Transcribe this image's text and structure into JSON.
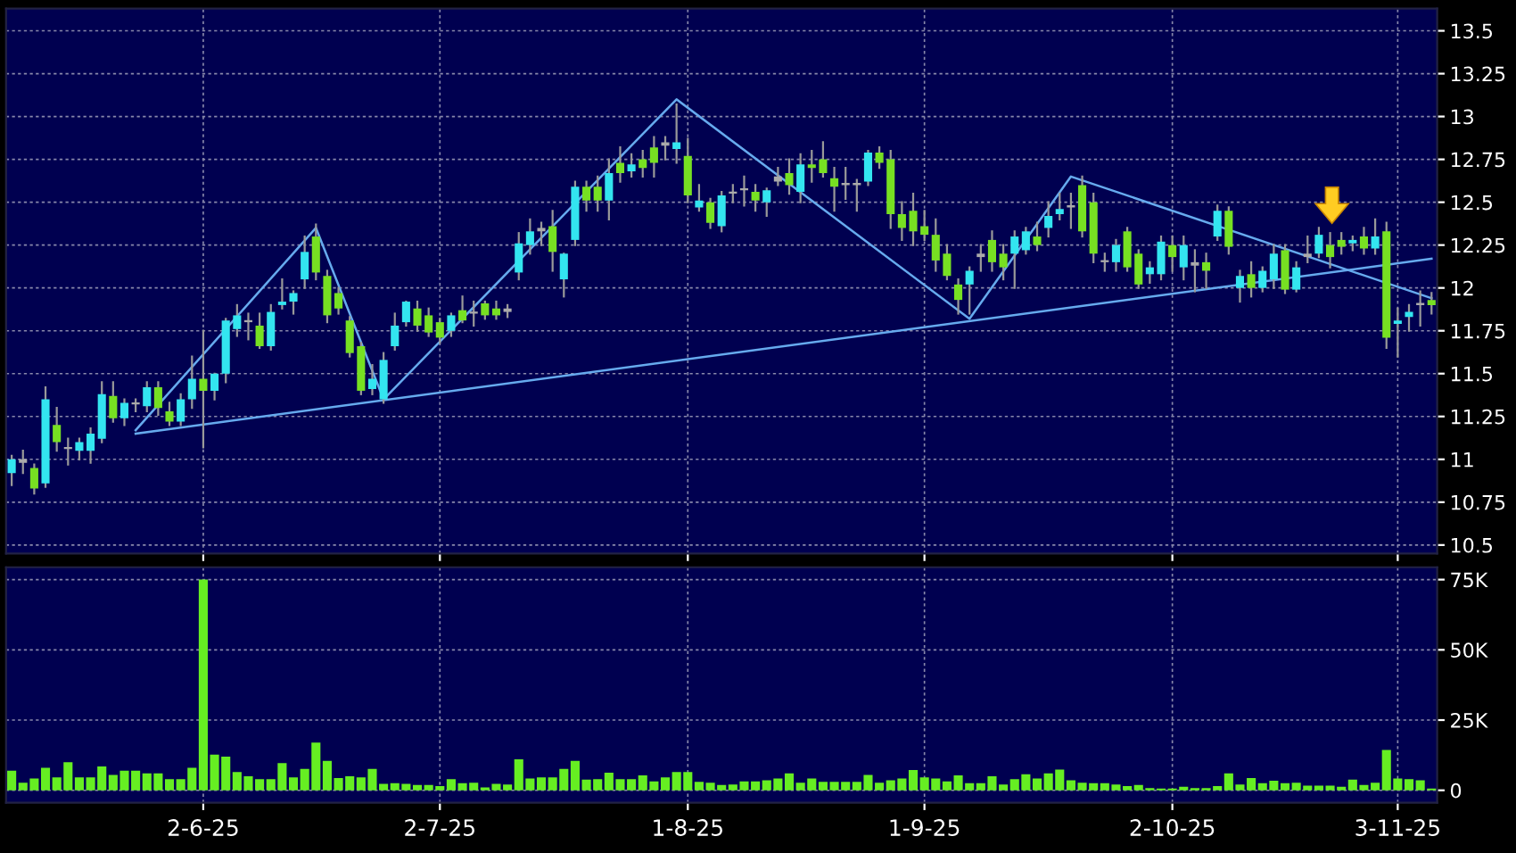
{
  "chart_data": [
    {
      "type": "candlestick",
      "tick_labels": "y",
      "grid": true,
      "categories": [
        null,
        null,
        null,
        null,
        null,
        null,
        null,
        null,
        null,
        null,
        null,
        null,
        null,
        null,
        null,
        null,
        null,
        null,
        null,
        null,
        null,
        null,
        null,
        null,
        null,
        null,
        null,
        null,
        null,
        null,
        null,
        null,
        null,
        null,
        null,
        null,
        null,
        null,
        null,
        null,
        null,
        null,
        null,
        null,
        null,
        null,
        null,
        null,
        null,
        null,
        null,
        null,
        null,
        null,
        null,
        null,
        null,
        null,
        null,
        null,
        null,
        null,
        null,
        null,
        null,
        null,
        null,
        null,
        null,
        null,
        null,
        null,
        null,
        null,
        null,
        null,
        null,
        null,
        null,
        null,
        null,
        null,
        null,
        null,
        null,
        null,
        null,
        null,
        null,
        null,
        null,
        null,
        null,
        null,
        null,
        null,
        null,
        null,
        null,
        null,
        null,
        null,
        null,
        null,
        null,
        null,
        null,
        null,
        null,
        null,
        null,
        null,
        null,
        null,
        null,
        null,
        null,
        null,
        null,
        null,
        null,
        null,
        null,
        null,
        null,
        null,
        null
      ],
      "ylim": [
        10.45,
        13.63
      ],
      "yticks": [
        10.5,
        10.75,
        11,
        11.25,
        11.5,
        11.75,
        12,
        12.25,
        12.5,
        12.75,
        13,
        13.25,
        13.5
      ],
      "ohlc": [
        [
          10.92,
          11.02,
          10.85,
          11.0
        ],
        [
          11.0,
          11.05,
          10.92,
          10.98
        ],
        [
          10.95,
          10.97,
          10.8,
          10.83
        ],
        [
          10.86,
          11.42,
          10.84,
          11.35
        ],
        [
          11.2,
          11.3,
          11.05,
          11.1
        ],
        [
          11.07,
          11.12,
          10.97,
          11.06
        ],
        [
          11.05,
          11.12,
          11.0,
          11.1
        ],
        [
          11.05,
          11.18,
          10.98,
          11.15
        ],
        [
          11.12,
          11.45,
          11.1,
          11.38
        ],
        [
          11.37,
          11.45,
          11.22,
          11.24
        ],
        [
          11.24,
          11.35,
          11.2,
          11.33
        ],
        [
          11.32,
          11.35,
          11.28,
          11.32
        ],
        [
          11.31,
          11.45,
          11.28,
          11.42
        ],
        [
          11.42,
          11.45,
          11.26,
          11.3
        ],
        [
          11.28,
          11.33,
          11.2,
          11.22
        ],
        [
          11.22,
          11.38,
          11.2,
          11.35
        ],
        [
          11.35,
          11.6,
          11.3,
          11.47
        ],
        [
          11.47,
          11.75,
          11.07,
          11.4
        ],
        [
          11.4,
          11.5,
          11.35,
          11.5
        ],
        [
          11.5,
          11.82,
          11.45,
          11.81
        ],
        [
          11.76,
          11.9,
          11.72,
          11.84
        ],
        [
          11.8,
          11.85,
          11.7,
          11.8
        ],
        [
          11.78,
          11.85,
          11.65,
          11.66
        ],
        [
          11.66,
          11.9,
          11.64,
          11.86
        ],
        [
          11.9,
          12.05,
          11.88,
          11.92
        ],
        [
          11.92,
          11.98,
          11.85,
          11.97
        ],
        [
          12.05,
          12.3,
          12.0,
          12.21
        ],
        [
          12.3,
          12.37,
          12.05,
          12.09
        ],
        [
          12.07,
          12.1,
          11.8,
          11.84
        ],
        [
          11.97,
          12.0,
          11.85,
          11.88
        ],
        [
          11.81,
          11.83,
          11.6,
          11.62
        ],
        [
          11.66,
          11.68,
          11.38,
          11.4
        ],
        [
          11.41,
          11.55,
          11.38,
          11.47
        ],
        [
          11.35,
          11.62,
          11.33,
          11.58
        ],
        [
          11.66,
          11.85,
          11.64,
          11.78
        ],
        [
          11.8,
          11.92,
          11.78,
          11.92
        ],
        [
          11.88,
          11.92,
          11.75,
          11.78
        ],
        [
          11.84,
          11.88,
          11.72,
          11.74
        ],
        [
          11.8,
          11.82,
          11.68,
          11.71
        ],
        [
          11.75,
          11.85,
          11.72,
          11.84
        ],
        [
          11.87,
          11.95,
          11.8,
          11.81
        ],
        [
          11.85,
          11.92,
          11.78,
          11.86
        ],
        [
          11.91,
          11.92,
          11.82,
          11.84
        ],
        [
          11.88,
          11.92,
          11.82,
          11.84
        ],
        [
          11.86,
          11.9,
          11.83,
          11.88
        ],
        [
          12.09,
          12.32,
          12.05,
          12.26
        ],
        [
          12.25,
          12.4,
          12.2,
          12.33
        ],
        [
          12.33,
          12.38,
          12.25,
          12.35
        ],
        [
          12.36,
          12.45,
          12.1,
          12.21
        ],
        [
          12.05,
          12.2,
          11.95,
          12.2
        ],
        [
          12.28,
          12.62,
          12.25,
          12.59
        ],
        [
          12.59,
          12.62,
          12.45,
          12.51
        ],
        [
          12.59,
          12.65,
          12.45,
          12.51
        ],
        [
          12.51,
          12.75,
          12.4,
          12.67
        ],
        [
          12.73,
          12.82,
          12.62,
          12.67
        ],
        [
          12.68,
          12.78,
          12.65,
          12.72
        ],
        [
          12.75,
          12.8,
          12.65,
          12.7
        ],
        [
          12.82,
          12.88,
          12.65,
          12.73
        ],
        [
          12.83,
          12.88,
          12.75,
          12.85
        ],
        [
          12.81,
          13.07,
          12.73,
          12.85
        ],
        [
          12.77,
          12.87,
          12.5,
          12.54
        ],
        [
          12.47,
          12.6,
          12.45,
          12.51
        ],
        [
          12.5,
          12.52,
          12.35,
          12.38
        ],
        [
          12.36,
          12.56,
          12.33,
          12.54
        ],
        [
          12.55,
          12.6,
          12.5,
          12.56
        ],
        [
          12.57,
          12.65,
          12.48,
          12.58
        ],
        [
          12.56,
          12.6,
          12.45,
          12.51
        ],
        [
          12.5,
          12.58,
          12.42,
          12.57
        ],
        [
          12.62,
          12.7,
          12.6,
          12.65
        ],
        [
          12.67,
          12.75,
          12.55,
          12.6
        ],
        [
          12.56,
          12.78,
          12.5,
          12.72
        ],
        [
          12.72,
          12.8,
          12.62,
          12.7
        ],
        [
          12.75,
          12.85,
          12.65,
          12.67
        ],
        [
          12.64,
          12.7,
          12.45,
          12.59
        ],
        [
          12.6,
          12.7,
          12.52,
          12.6
        ],
        [
          12.6,
          12.63,
          12.45,
          12.6
        ],
        [
          12.62,
          12.8,
          12.6,
          12.79
        ],
        [
          12.79,
          12.82,
          12.7,
          12.73
        ],
        [
          12.75,
          12.8,
          12.35,
          12.43
        ],
        [
          12.43,
          12.5,
          12.28,
          12.35
        ],
        [
          12.45,
          12.55,
          12.25,
          12.33
        ],
        [
          12.36,
          12.45,
          12.28,
          12.31
        ],
        [
          12.31,
          12.4,
          12.1,
          12.16
        ],
        [
          12.2,
          12.25,
          12.05,
          12.07
        ],
        [
          12.02,
          12.05,
          11.85,
          11.93
        ],
        [
          12.02,
          12.12,
          11.85,
          12.1
        ],
        [
          12.18,
          12.25,
          12.1,
          12.2
        ],
        [
          12.28,
          12.33,
          12.1,
          12.15
        ],
        [
          12.2,
          12.25,
          12.05,
          12.12
        ],
        [
          12.2,
          12.33,
          12.0,
          12.3
        ],
        [
          12.22,
          12.35,
          12.2,
          12.33
        ],
        [
          12.3,
          12.38,
          12.22,
          12.25
        ],
        [
          12.35,
          12.5,
          12.3,
          12.42
        ],
        [
          12.43,
          12.55,
          12.4,
          12.46
        ],
        [
          12.47,
          12.55,
          12.35,
          12.48
        ],
        [
          12.6,
          12.65,
          12.3,
          12.33
        ],
        [
          12.5,
          12.55,
          12.15,
          12.2
        ],
        [
          12.16,
          12.2,
          12.1,
          12.15
        ],
        [
          12.15,
          12.28,
          12.1,
          12.25
        ],
        [
          12.33,
          12.35,
          12.1,
          12.12
        ],
        [
          12.2,
          12.22,
          12.0,
          12.02
        ],
        [
          12.08,
          12.15,
          12.03,
          12.12
        ],
        [
          12.08,
          12.3,
          12.05,
          12.27
        ],
        [
          12.25,
          12.3,
          12.1,
          12.18
        ],
        [
          12.12,
          12.3,
          12.05,
          12.25
        ],
        [
          12.15,
          12.22,
          11.98,
          12.13
        ],
        [
          12.15,
          12.2,
          12.0,
          12.1
        ],
        [
          12.3,
          12.48,
          12.28,
          12.45
        ],
        [
          12.45,
          12.47,
          12.2,
          12.24
        ],
        [
          12.0,
          12.1,
          11.92,
          12.07
        ],
        [
          12.08,
          12.15,
          11.95,
          12.0
        ],
        [
          12.0,
          12.12,
          11.98,
          12.1
        ],
        [
          12.05,
          12.25,
          12.0,
          12.2
        ],
        [
          12.22,
          12.25,
          11.97,
          11.99
        ],
        [
          11.99,
          12.15,
          11.98,
          12.12
        ],
        [
          12.18,
          12.3,
          12.15,
          12.2
        ],
        [
          12.2,
          12.35,
          12.18,
          12.31
        ],
        [
          12.25,
          12.32,
          12.12,
          12.18
        ],
        [
          12.28,
          12.32,
          12.2,
          12.24
        ],
        [
          12.26,
          12.3,
          12.22,
          12.28
        ],
        [
          12.3,
          12.35,
          12.2,
          12.23
        ],
        [
          12.23,
          12.4,
          12.2,
          12.3
        ],
        [
          12.33,
          12.38,
          11.65,
          11.71
        ],
        [
          11.79,
          11.88,
          11.6,
          11.81
        ],
        [
          11.83,
          11.9,
          11.75,
          11.86
        ],
        [
          11.9,
          11.98,
          11.78,
          11.9
        ],
        [
          11.93,
          11.97,
          11.85,
          11.9
        ]
      ],
      "colors": [
        "#33e5f0",
        "#aaaaaa",
        "#77e022",
        "#33e5f0",
        "#77e022",
        "#aaaaaa",
        "#33e5f0",
        "#33e5f0",
        "#33e5f0",
        "#77e022",
        "#33e5f0",
        "#aaaaaa",
        "#33e5f0",
        "#77e022",
        "#77e022",
        "#33e5f0",
        "#33e5f0",
        "#77e022",
        "#33e5f0",
        "#33e5f0",
        "#33e5f0",
        "#aaaaaa",
        "#77e022",
        "#33e5f0",
        "#33e5f0",
        "#33e5f0",
        "#33e5f0",
        "#77e022",
        "#77e022",
        "#77e022",
        "#77e022",
        "#77e022",
        "#33e5f0",
        "#33e5f0",
        "#33e5f0",
        "#33e5f0",
        "#77e022",
        "#77e022",
        "#77e022",
        "#33e5f0",
        "#77e022",
        "#aaaaaa",
        "#77e022",
        "#77e022",
        "#aaaaaa",
        "#33e5f0",
        "#33e5f0",
        "#aaaaaa",
        "#77e022",
        "#33e5f0",
        "#33e5f0",
        "#77e022",
        "#77e022",
        "#33e5f0",
        "#77e022",
        "#33e5f0",
        "#77e022",
        "#77e022",
        "#aaaaaa",
        "#33e5f0",
        "#77e022",
        "#33e5f0",
        "#77e022",
        "#33e5f0",
        "#aaaaaa",
        "#aaaaaa",
        "#77e022",
        "#33e5f0",
        "#aaaaaa",
        "#77e022",
        "#33e5f0",
        "#77e022",
        "#77e022",
        "#77e022",
        "#aaaaaa",
        "#aaaaaa",
        "#33e5f0",
        "#77e022",
        "#77e022",
        "#77e022",
        "#77e022",
        "#77e022",
        "#77e022",
        "#77e022",
        "#77e022",
        "#33e5f0",
        "#aaaaaa",
        "#77e022",
        "#77e022",
        "#33e5f0",
        "#33e5f0",
        "#77e022",
        "#33e5f0",
        "#33e5f0",
        "#aaaaaa",
        "#77e022",
        "#77e022",
        "#aaaaaa",
        "#33e5f0",
        "#77e022",
        "#77e022",
        "#33e5f0",
        "#33e5f0",
        "#77e022",
        "#33e5f0",
        "#aaaaaa",
        "#77e022",
        "#33e5f0",
        "#77e022",
        "#33e5f0",
        "#77e022",
        "#33e5f0",
        "#33e5f0",
        "#77e022",
        "#33e5f0",
        "#aaaaaa",
        "#33e5f0",
        "#77e022",
        "#77e022",
        "#33e5f0",
        "#77e022",
        "#33e5f0",
        "#77e022",
        "#33e5f0",
        "#33e5f0",
        "#aaaaaa",
        "#77e022"
      ],
      "series": [
        {
          "type": "line",
          "color": "#66aaee",
          "values": [
            null,
            null,
            null,
            null,
            null,
            null,
            null,
            null,
            null,
            null,
            null,
            11.17,
            null,
            null,
            null,
            null,
            null,
            null,
            null,
            null,
            null,
            null,
            null,
            null,
            null,
            null,
            null,
            12.35,
            null,
            null,
            null,
            null,
            null,
            11.35,
            null,
            null,
            null,
            null,
            null,
            null,
            null,
            null,
            null,
            null,
            null,
            null,
            null,
            null,
            null,
            null,
            null,
            null,
            null,
            null,
            null,
            null,
            null,
            null,
            null,
            13.1,
            null,
            null,
            null,
            null,
            null,
            null,
            null,
            null,
            null,
            null,
            null,
            null,
            null,
            null,
            null,
            null,
            null,
            null,
            null,
            null,
            null,
            null,
            null,
            null,
            null,
            11.82,
            null,
            null,
            null,
            null,
            null,
            null,
            null,
            null,
            12.65,
            null,
            null,
            null,
            null,
            null,
            null,
            null,
            null,
            null,
            null,
            null,
            null,
            null,
            null,
            null,
            null,
            null,
            null,
            null,
            null,
            null,
            null,
            null,
            null,
            null,
            null,
            null,
            null,
            null,
            null,
            null,
            11.94
          ]
        },
        {
          "type": "line",
          "color": "#66aaee",
          "values": [
            null,
            null,
            null,
            null,
            null,
            null,
            null,
            null,
            null,
            null,
            null,
            11.15,
            null,
            null,
            null,
            null,
            null,
            null,
            null,
            null,
            null,
            null,
            null,
            null,
            null,
            null,
            null,
            null,
            null,
            null,
            null,
            null,
            null,
            null,
            null,
            null,
            null,
            null,
            null,
            null,
            null,
            null,
            null,
            null,
            null,
            null,
            null,
            null,
            null,
            null,
            null,
            null,
            null,
            null,
            null,
            null,
            null,
            null,
            null,
            null,
            null,
            null,
            null,
            null,
            null,
            null,
            null,
            null,
            null,
            null,
            null,
            null,
            null,
            null,
            null,
            null,
            null,
            null,
            null,
            null,
            null,
            null,
            null,
            null,
            null,
            null,
            null,
            null,
            null,
            null,
            null,
            null,
            null,
            null,
            null,
            null,
            null,
            null,
            null,
            null,
            null,
            null,
            null,
            null,
            null,
            null,
            null,
            null,
            null,
            null,
            null,
            null,
            null,
            null,
            null,
            null,
            null,
            null,
            null,
            null,
            null,
            null,
            null,
            null,
            null,
            null,
            12.17
          ]
        }
      ]
    },
    {
      "type": "bar",
      "grid": true,
      "color": "#66ee22",
      "categories": [
        null,
        null,
        null,
        null,
        null,
        null,
        null,
        null,
        null,
        null,
        null,
        null,
        null,
        null,
        null,
        null,
        null,
        "2-6-25",
        null,
        null,
        null,
        null,
        null,
        null,
        null,
        null,
        null,
        null,
        null,
        null,
        null,
        null,
        null,
        null,
        null,
        null,
        null,
        null,
        "2-7-25",
        null,
        null,
        null,
        null,
        null,
        null,
        null,
        null,
        null,
        null,
        null,
        null,
        null,
        null,
        null,
        null,
        null,
        null,
        null,
        null,
        null,
        "1-8-25",
        null,
        null,
        null,
        null,
        null,
        null,
        null,
        null,
        null,
        null,
        null,
        null,
        null,
        null,
        null,
        null,
        null,
        null,
        null,
        null,
        "1-9-25",
        null,
        null,
        null,
        null,
        null,
        null,
        null,
        null,
        null,
        null,
        null,
        null,
        null,
        null,
        null,
        null,
        null,
        null,
        null,
        null,
        null,
        "2-10-25",
        null,
        null,
        null,
        null,
        null,
        null,
        null,
        null,
        null,
        null,
        null,
        null,
        null,
        null,
        null,
        null,
        null,
        null,
        null,
        "3-11-25",
        null,
        null,
        null
      ],
      "ylim": [
        -4400,
        79400
      ],
      "yticks": [
        0,
        {
          "value": 25000,
          "label": "25K"
        },
        {
          "value": 50000,
          "label": "50K"
        },
        {
          "value": 75000,
          "label": "75K"
        }
      ],
      "values": [
        7000,
        2700,
        4200,
        8000,
        4600,
        10000,
        4600,
        4600,
        8500,
        5500,
        7000,
        7000,
        6000,
        6000,
        4000,
        4000,
        8000,
        75000,
        12700,
        12000,
        6500,
        5000,
        4000,
        4000,
        9700,
        4600,
        7600,
        17000,
        10500,
        4400,
        5000,
        4600,
        7600,
        2300,
        2500,
        2300,
        1900,
        1900,
        1500,
        4000,
        2500,
        2700,
        1000,
        2300,
        2100,
        11000,
        4200,
        4600,
        4600,
        7600,
        10500,
        3800,
        4000,
        6300,
        4000,
        4000,
        5300,
        3200,
        4600,
        6500,
        6500,
        3000,
        2700,
        1900,
        2100,
        3200,
        3200,
        3600,
        4200,
        6000,
        2700,
        4200,
        3000,
        3000,
        3000,
        3000,
        5500,
        2700,
        3600,
        4200,
        7200,
        4600,
        4200,
        3200,
        5300,
        2500,
        2500,
        5000,
        2100,
        4000,
        5700,
        4200,
        6000,
        7400,
        3600,
        2700,
        2500,
        2500,
        2100,
        1500,
        1900,
        800,
        600,
        600,
        1300,
        800,
        800,
        1500,
        6000,
        2100,
        4400,
        2500,
        3400,
        2500,
        2700,
        1700,
        1700,
        1700,
        1300,
        3800,
        1900,
        2700,
        14400,
        4200,
        4000,
        3600,
        600
      ]
    }
  ]
}
